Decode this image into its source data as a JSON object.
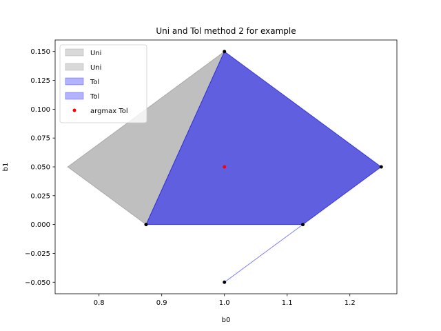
{
  "chart_data": {
    "type": "area",
    "title": "Uni and Tol method 2 for example",
    "xlabel": "b0",
    "ylabel": "b1",
    "xlim": [
      0.73,
      1.275
    ],
    "ylim": [
      -0.06,
      0.16
    ],
    "xticks": [
      0.8,
      0.9,
      1.0,
      1.1,
      1.2
    ],
    "xtick_labels": [
      "0.8",
      "0.9",
      "1.0",
      "1.1",
      "1.2"
    ],
    "yticks": [
      -0.05,
      -0.025,
      0.0,
      0.025,
      0.05,
      0.075,
      0.1,
      0.125,
      0.15
    ],
    "ytick_labels": [
      "−0.050",
      "−0.025",
      "0.000",
      "0.025",
      "0.050",
      "0.075",
      "0.100",
      "0.125",
      "0.150"
    ],
    "grid": false,
    "legend_position": "top-left",
    "series": [
      {
        "name": "Uni",
        "kind": "polygon",
        "color": "#808080",
        "points": [
          [
            0.75,
            0.05
          ],
          [
            1.0,
            0.15
          ],
          [
            0.875,
            0.0
          ]
        ]
      },
      {
        "name": "Uni",
        "kind": "polygon",
        "color": "#808080",
        "points": [
          [
            0.875,
            0.0
          ],
          [
            1.0,
            0.15
          ],
          [
            1.25,
            0.05
          ],
          [
            1.125,
            0.0
          ]
        ]
      },
      {
        "name": "Tol",
        "kind": "polygon",
        "color": "#0000ff",
        "points": [
          [
            0.875,
            0.0
          ],
          [
            1.0,
            0.15
          ],
          [
            1.25,
            0.05
          ],
          [
            1.125,
            0.0
          ]
        ]
      },
      {
        "name": "Tol",
        "kind": "polygon",
        "color": "#0000ff",
        "points": [
          [
            1.0,
            -0.05
          ],
          [
            1.125,
            0.0
          ]
        ]
      },
      {
        "name": "argmax Tol",
        "kind": "scatter",
        "color": "#ff0000",
        "points": [
          [
            1.0,
            0.05
          ]
        ]
      }
    ],
    "vertices": [
      [
        1.0,
        0.15
      ],
      [
        1.25,
        0.05
      ],
      [
        0.875,
        0.0
      ],
      [
        1.125,
        0.0
      ],
      [
        1.0,
        -0.05
      ]
    ],
    "vertex_color": "#000000"
  }
}
